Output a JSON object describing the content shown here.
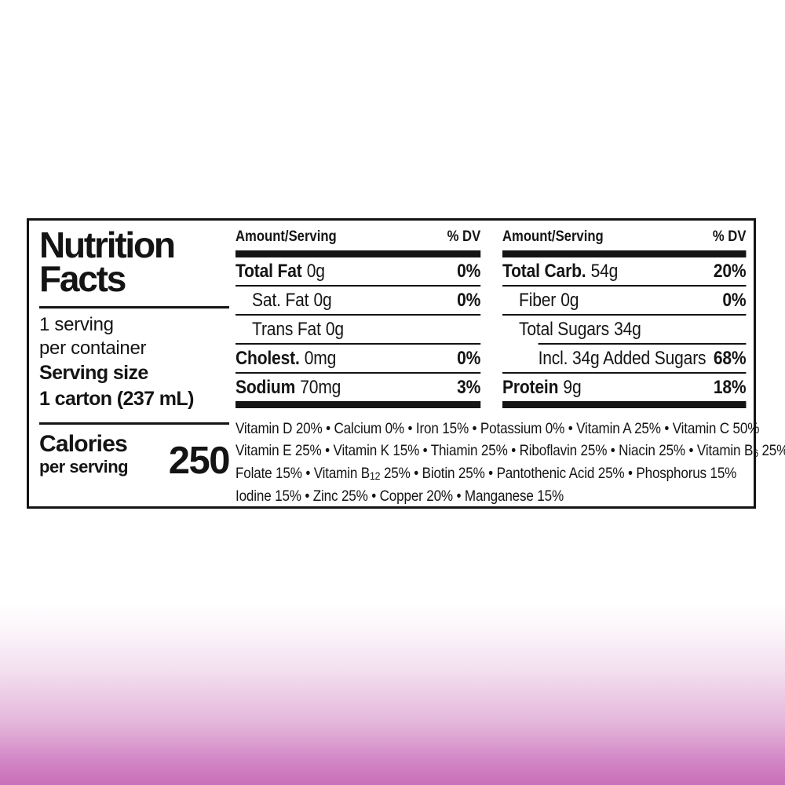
{
  "label": {
    "title_line1": "Nutrition",
    "title_line2": "Facts",
    "servings_line1": "1 serving",
    "servings_line2": "per container",
    "serving_size_label": "Serving size",
    "serving_size_value": "1 carton (237 mL)",
    "calories_label": "Calories",
    "calories_sub": "per serving",
    "calories_value": "250"
  },
  "columns": [
    {
      "header": {
        "amount": "Amount/Serving",
        "dv": "% DV"
      },
      "rows": [
        {
          "name": "Total Fat",
          "amount": "0g",
          "dv": "0%"
        },
        {
          "name": "Sat. Fat",
          "amount": "0g",
          "dv": "0%"
        },
        {
          "name": "Trans Fat",
          "amount": "0g",
          "dv": ""
        },
        {
          "name": "Cholest.",
          "amount": "0mg",
          "dv": "0%"
        },
        {
          "name": "Sodium",
          "amount": "70mg",
          "dv": "3%"
        }
      ]
    },
    {
      "header": {
        "amount": "Amount/Serving",
        "dv": "% DV"
      },
      "rows": [
        {
          "name": "Total Carb.",
          "amount": "54g",
          "dv": "20%"
        },
        {
          "name": "Fiber",
          "amount": "0g",
          "dv": "0%"
        },
        {
          "name": "Total Sugars",
          "amount": "34g",
          "dv": ""
        },
        {
          "name": "Incl. 34g Added Sugars",
          "amount": "",
          "dv": "68%"
        },
        {
          "name": "Protein",
          "amount": "9g",
          "dv": "18%"
        }
      ]
    }
  ],
  "vitamins": {
    "lines": [
      "Vitamin D 20% • Calcium 0% • Iron 15% • Potassium 0% • Vitamin A 25% • Vitamin C 50%",
      "Vitamin E 25% • Vitamin K 15% • Thiamin 25% • Riboflavin 25% • Niacin 25% • Vitamin B6 25%",
      "Folate 15% • Vitamin B12 25% • Biotin 25% • Pantothenic Acid 25% • Phosphorus 15%",
      "Iodine 15% • Zinc 25% • Copper 20% • Manganese 15%"
    ]
  },
  "colors": {
    "text": "#141414",
    "label_background": "#ffffff",
    "gradient_bottom": "#c96fb9"
  }
}
